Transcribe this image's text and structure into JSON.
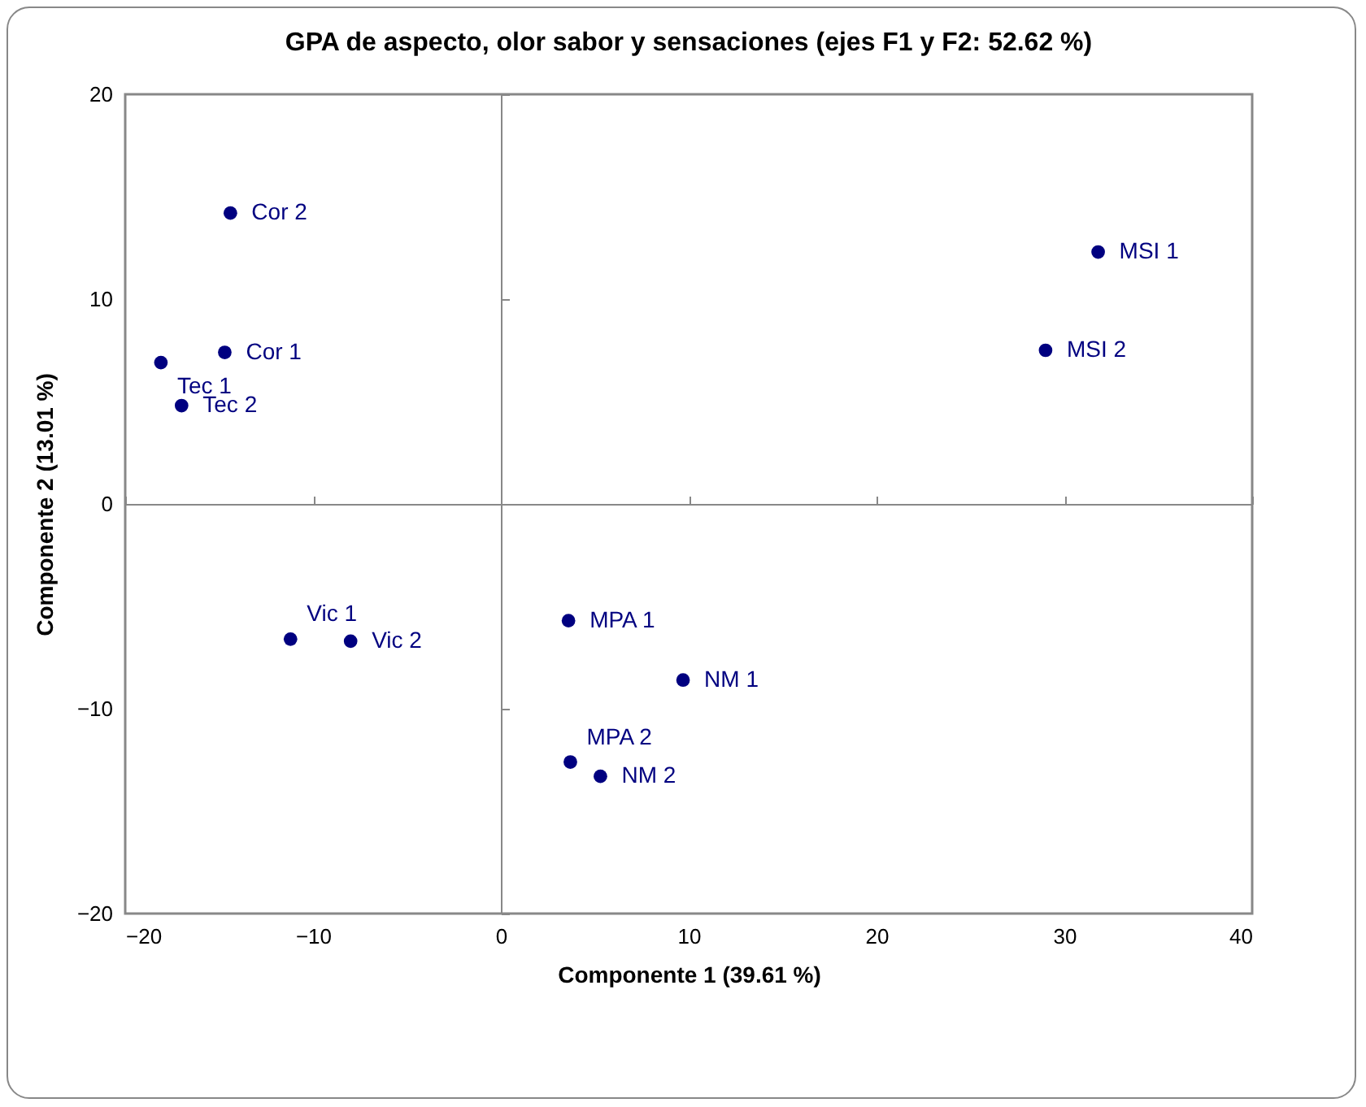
{
  "chart_data": {
    "type": "scatter",
    "title": "GPA de aspecto, olor sabor y sensaciones (ejes F1 y F2: 52.62 %)",
    "xlabel": "Componente 1 (39.61 %)",
    "ylabel": "Componente 2 (13.01 %)",
    "xlim": [
      -20,
      40
    ],
    "xticks": [
      -20,
      -10,
      0,
      10,
      20,
      30,
      40
    ],
    "ylim": [
      -20,
      20
    ],
    "yticks": [
      -20,
      -10,
      0,
      10,
      20
    ],
    "marker": "circle",
    "series": [
      {
        "color": "#000080",
        "x": [
          -14.4,
          -14.7,
          -18.1,
          -17.0,
          31.8,
          29.0,
          -11.2,
          -8.0,
          3.6,
          9.7,
          3.7,
          5.3
        ],
        "values": [
          14.2,
          7.4,
          6.9,
          4.8,
          12.3,
          7.5,
          -6.6,
          -6.7,
          -5.7,
          -8.6,
          -12.6,
          -13.3
        ],
        "value_labels": [
          "Cor 2",
          "Cor 1",
          "Tec 1",
          "Tec 2",
          "MSI 1",
          "MSI 2",
          "Vic 1",
          "Vic 2",
          "MPA 1",
          "NM 1",
          "MPA 2",
          "NM 2"
        ]
      }
    ]
  }
}
